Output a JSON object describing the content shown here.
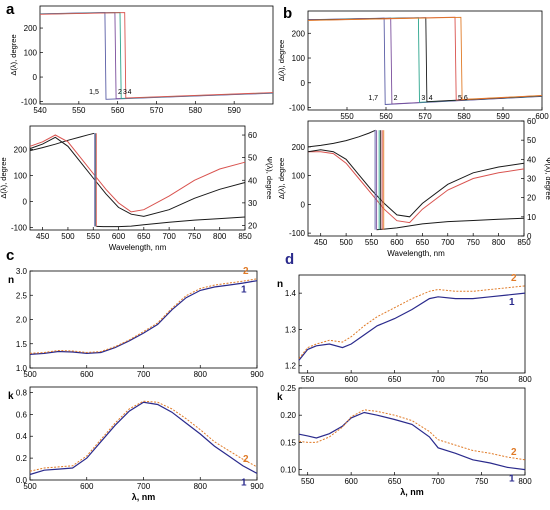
{
  "panel_labels": {
    "a": "a",
    "b": "b",
    "c": "c",
    "d": "d"
  },
  "colors": {
    "black": "#1a1a1a",
    "red": "#d9534f",
    "green": "#2ca58d",
    "blue": "#5b5ea6",
    "purple": "#7b4f9d",
    "orange": "#e07b28",
    "navy": "#2a2a8c"
  },
  "chart_data": [
    {
      "id": "a_top",
      "type": "line",
      "ylabel": "Δ(λ), degree",
      "xlabel": "",
      "xlim": [
        540,
        600
      ],
      "ylim": [
        -110,
        290
      ],
      "xticks": [
        540,
        550,
        560,
        570,
        580,
        590
      ],
      "yticks": [
        -100,
        0,
        100,
        200
      ],
      "curve_labels": [
        "1,5",
        "2",
        "3",
        "4"
      ],
      "series": [
        {
          "label": "1,5",
          "color": "#5b5ea6",
          "jump": 556.7
        },
        {
          "label": "2",
          "color": "#7b4f9d",
          "jump": 559.3
        },
        {
          "label": "3",
          "color": "#2ca58d",
          "jump": 560.6
        },
        {
          "label": "4",
          "color": "#d9534f",
          "jump": 561.8
        }
      ],
      "segments": {
        "high": [
          [
            540,
            258
          ],
          [
            565,
            266
          ]
        ],
        "low": [
          [
            555,
            -92
          ],
          [
            600,
            -66
          ]
        ]
      }
    },
    {
      "id": "a_bottom",
      "type": "line",
      "ylabel": "Δ(λ), degree",
      "y2label": "Ψ(λ), degree",
      "xlabel": "Wavelength, nm",
      "xlim": [
        425,
        850
      ],
      "ylim": [
        -110,
        290
      ],
      "y2lim": [
        18,
        64
      ],
      "xticks": [
        450,
        500,
        550,
        600,
        650,
        700,
        750,
        800,
        850
      ],
      "yticks": [
        -100,
        0,
        100,
        200
      ],
      "y2ticks": [
        20,
        30,
        40,
        50,
        60
      ],
      "series": [
        {
          "name": "Delta",
          "color": "#1a1a1a",
          "x": [
            425,
            450,
            475,
            500,
            525,
            540,
            552
          ],
          "y": [
            195,
            207,
            220,
            235,
            248,
            256,
            262
          ]
        },
        {
          "name": "Delta",
          "color": "#1a1a1a",
          "x": [
            556,
            570,
            600,
            625,
            650,
            675,
            700,
            750,
            800,
            850
          ],
          "y": [
            -96,
            -97,
            -97,
            -95,
            -90,
            -85,
            -80,
            -72,
            -66,
            -60
          ]
        },
        {
          "name": "Psi",
          "color": "#d9534f",
          "x": [
            425,
            450,
            475,
            500,
            525,
            550,
            575,
            600,
            625,
            650,
            700,
            750,
            800,
            850
          ],
          "y2": [
            55,
            57,
            60,
            57,
            50,
            43,
            36,
            30,
            26,
            27,
            33,
            40,
            45,
            48
          ]
        },
        {
          "name": "Psi",
          "color": "#1a1a1a",
          "x": [
            425,
            450,
            475,
            500,
            525,
            550,
            575,
            600,
            625,
            650,
            700,
            750,
            800,
            850
          ],
          "y2": [
            54,
            56,
            59,
            55,
            48,
            41,
            34,
            28,
            25,
            24,
            27,
            32,
            36,
            39
          ]
        }
      ]
    },
    {
      "id": "b_top",
      "type": "line",
      "ylabel": "Δ(λ), degree",
      "xlabel": "",
      "xlim": [
        540,
        600
      ],
      "ylim": [
        -110,
        290
      ],
      "xticks": [
        550,
        560,
        570,
        580,
        590,
        600
      ],
      "yticks": [
        -100,
        0,
        100,
        200
      ],
      "curve_labels": [
        "1,7",
        "2",
        "3",
        "4",
        "5",
        "6"
      ],
      "series": [
        {
          "label": "1,7",
          "color": "#5b5ea6",
          "jump": 559.5
        },
        {
          "label": "2",
          "color": "#7b4f9d",
          "jump": 561.2
        },
        {
          "label": "3",
          "color": "#2ca58d",
          "jump": 568.3
        },
        {
          "label": "4",
          "color": "#1a1a1a",
          "jump": 570.2
        },
        {
          "label": "5",
          "color": "#d9534f",
          "jump": 577.7
        },
        {
          "label": "6",
          "color": "#e07b28",
          "jump": 579.2
        }
      ],
      "segments": {
        "high": [
          [
            540,
            255
          ],
          [
            580,
            268
          ]
        ],
        "low": [
          [
            557,
            -90
          ],
          [
            600,
            -55
          ]
        ]
      }
    },
    {
      "id": "b_bottom",
      "type": "line",
      "ylabel": "Δ(λ), degree",
      "y2label": "Ψ(λ), degree",
      "xlabel": "Wavelength, nm",
      "xlim": [
        425,
        850
      ],
      "ylim": [
        -110,
        290
      ],
      "y2lim": [
        0,
        60
      ],
      "xticks": [
        450,
        500,
        550,
        600,
        650,
        700,
        750,
        800,
        850
      ],
      "yticks": [
        -100,
        0,
        100,
        200
      ],
      "y2ticks": [
        0,
        10,
        20,
        30,
        40,
        50,
        60
      ],
      "series": [
        {
          "name": "Delta",
          "color": "#1a1a1a",
          "x": [
            425,
            450,
            475,
            500,
            525,
            545,
            558
          ],
          "y": [
            200,
            205,
            212,
            222,
            235,
            248,
            258
          ]
        },
        {
          "name": "Delta",
          "color": "#1a1a1a",
          "x": [
            560,
            575,
            600,
            625,
            650,
            700,
            750,
            800,
            850
          ],
          "y": [
            -88,
            -86,
            -82,
            -75,
            -68,
            -60,
            -56,
            -52,
            -48
          ]
        },
        {
          "name": "Psi",
          "color": "#d9534f",
          "x": [
            425,
            450,
            475,
            500,
            525,
            550,
            575,
            600,
            625,
            650,
            700,
            750,
            800,
            850
          ],
          "y2": [
            44,
            44,
            43,
            38,
            30,
            22,
            14,
            8,
            7,
            14,
            24,
            30,
            33,
            35
          ]
        },
        {
          "name": "Psi",
          "color": "#1a1a1a",
          "x": [
            425,
            450,
            475,
            500,
            525,
            550,
            575,
            600,
            625,
            650,
            700,
            750,
            800,
            850
          ],
          "y2": [
            44,
            45,
            44,
            40,
            32,
            24,
            17,
            11,
            10,
            17,
            27,
            33,
            36,
            38
          ]
        }
      ]
    },
    {
      "id": "c_n",
      "type": "line",
      "ylabel": "n",
      "xlabel": "",
      "xlim": [
        500,
        900
      ],
      "ylim": [
        1.0,
        3.0
      ],
      "xticks": [
        500,
        600,
        700,
        800,
        900
      ],
      "yticks": [
        1.0,
        1.5,
        2.0,
        2.5,
        3.0
      ],
      "series": [
        {
          "name": "1",
          "color": "#2a2a8c",
          "x": [
            500,
            525,
            550,
            575,
            600,
            625,
            650,
            675,
            700,
            725,
            750,
            775,
            800,
            825,
            850,
            875,
            900
          ],
          "y": [
            1.28,
            1.3,
            1.34,
            1.33,
            1.3,
            1.32,
            1.42,
            1.56,
            1.72,
            1.9,
            2.2,
            2.45,
            2.6,
            2.67,
            2.71,
            2.75,
            2.8
          ]
        },
        {
          "name": "2",
          "color": "#e07b28",
          "x": [
            500,
            525,
            550,
            575,
            600,
            625,
            650,
            675,
            700,
            725,
            750,
            775,
            800,
            825,
            850,
            875,
            900
          ],
          "y": [
            1.3,
            1.32,
            1.36,
            1.35,
            1.32,
            1.34,
            1.44,
            1.58,
            1.75,
            1.93,
            2.23,
            2.49,
            2.64,
            2.71,
            2.75,
            2.79,
            2.84
          ]
        }
      ],
      "curve_labels": [
        "1",
        "2"
      ]
    },
    {
      "id": "c_k",
      "type": "line",
      "ylabel": "k",
      "xlabel": "λ, nm",
      "xlim": [
        500,
        900
      ],
      "ylim": [
        0.0,
        0.85
      ],
      "xticks": [
        500,
        600,
        700,
        800,
        900
      ],
      "yticks": [
        0.0,
        0.2,
        0.4,
        0.6,
        0.8
      ],
      "series": [
        {
          "name": "1",
          "color": "#2a2a8c",
          "x": [
            500,
            525,
            550,
            575,
            600,
            625,
            650,
            675,
            700,
            725,
            750,
            775,
            800,
            825,
            850,
            875,
            900
          ],
          "y": [
            0.05,
            0.09,
            0.1,
            0.11,
            0.2,
            0.35,
            0.5,
            0.63,
            0.71,
            0.69,
            0.62,
            0.52,
            0.42,
            0.31,
            0.22,
            0.13,
            0.06
          ]
        },
        {
          "name": "2",
          "color": "#e07b28",
          "x": [
            500,
            525,
            550,
            575,
            600,
            625,
            650,
            675,
            700,
            725,
            750,
            775,
            800,
            825,
            850,
            875,
            900
          ],
          "y": [
            0.08,
            0.11,
            0.12,
            0.13,
            0.22,
            0.37,
            0.52,
            0.65,
            0.72,
            0.71,
            0.65,
            0.56,
            0.46,
            0.35,
            0.27,
            0.19,
            0.12
          ]
        }
      ],
      "curve_labels": [
        "1",
        "2"
      ]
    },
    {
      "id": "d_n",
      "type": "line",
      "ylabel": "n",
      "xlabel": "",
      "xlim": [
        540,
        800
      ],
      "ylim": [
        1.18,
        1.45
      ],
      "xticks": [
        550,
        600,
        650,
        700,
        750,
        800
      ],
      "yticks": [
        1.2,
        1.3,
        1.4
      ],
      "series": [
        {
          "name": "1",
          "color": "#2a2a8c",
          "x": [
            540,
            550,
            560,
            575,
            590,
            600,
            615,
            630,
            650,
            670,
            690,
            700,
            720,
            740,
            760,
            780,
            800
          ],
          "y": [
            1.215,
            1.245,
            1.255,
            1.26,
            1.25,
            1.26,
            1.285,
            1.31,
            1.33,
            1.355,
            1.385,
            1.39,
            1.385,
            1.385,
            1.39,
            1.395,
            1.4
          ]
        },
        {
          "name": "2",
          "color": "#e07b28",
          "x": [
            540,
            550,
            560,
            575,
            590,
            600,
            615,
            630,
            650,
            670,
            690,
            700,
            720,
            740,
            760,
            780,
            800
          ],
          "y": [
            1.22,
            1.25,
            1.26,
            1.27,
            1.265,
            1.28,
            1.31,
            1.335,
            1.36,
            1.385,
            1.405,
            1.41,
            1.405,
            1.405,
            1.41,
            1.415,
            1.42
          ]
        }
      ],
      "curve_labels": [
        "1",
        "2"
      ]
    },
    {
      "id": "d_k",
      "type": "line",
      "ylabel": "k",
      "xlabel": "λ, nm",
      "xlim": [
        540,
        800
      ],
      "ylim": [
        0.09,
        0.25
      ],
      "xticks": [
        550,
        600,
        650,
        700,
        750,
        800
      ],
      "yticks": [
        0.1,
        0.15,
        0.2,
        0.25
      ],
      "series": [
        {
          "name": "1",
          "color": "#2a2a8c",
          "x": [
            540,
            550,
            560,
            575,
            590,
            600,
            615,
            630,
            650,
            670,
            690,
            700,
            720,
            740,
            760,
            780,
            800
          ],
          "y": [
            0.165,
            0.162,
            0.158,
            0.166,
            0.18,
            0.195,
            0.205,
            0.2,
            0.192,
            0.183,
            0.16,
            0.14,
            0.13,
            0.118,
            0.112,
            0.104,
            0.1
          ]
        },
        {
          "name": "2",
          "color": "#e07b28",
          "x": [
            540,
            550,
            560,
            575,
            590,
            600,
            615,
            630,
            650,
            670,
            690,
            700,
            720,
            740,
            760,
            780,
            800
          ],
          "y": [
            0.152,
            0.15,
            0.15,
            0.16,
            0.178,
            0.197,
            0.21,
            0.207,
            0.2,
            0.19,
            0.17,
            0.155,
            0.145,
            0.135,
            0.13,
            0.123,
            0.118
          ]
        }
      ],
      "curve_labels": [
        "1",
        "2"
      ]
    }
  ]
}
